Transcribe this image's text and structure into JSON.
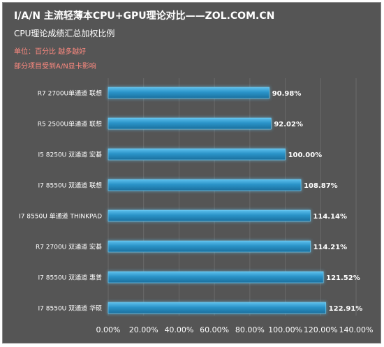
{
  "header": {
    "title": "I/A/N 主流轻薄本CPU+GPU理论对比——ZOL.COM.CN",
    "subtitle": "CPU理论成绩汇总加权比例",
    "note1": "单位：百分比  越多越好",
    "note2": "部分项目受到A/N显卡影响"
  },
  "colors": {
    "background": "#555555",
    "bar": "#2a93c9",
    "bar_light": "#5cc0ec",
    "bar_dark": "#1b6f9c",
    "grid": "#6a6a6a"
  },
  "chart_data": {
    "type": "bar",
    "orientation": "horizontal",
    "title": "I/A/N 主流轻薄本CPU+GPU理论对比——ZOL.COM.CN",
    "subtitle": "CPU理论成绩汇总加权比例",
    "categories": [
      "R7 2700U单通道 联想",
      "R5 2500U单通道 联想",
      "I5 8250U 双通道 宏碁",
      "I7 8550U 双通道 联想",
      "I7 8550U 单通道 THINKPAD",
      "R7 2700U 双通道 宏碁",
      "I7 8550U 双通道 惠普",
      "I7 8550U  双通道 华硕"
    ],
    "values": [
      90.98,
      92.02,
      100.0,
      108.87,
      114.14,
      114.21,
      121.52,
      122.91
    ],
    "value_labels": [
      "90.98%",
      "92.02%",
      "100.00%",
      "108.87%",
      "114.14%",
      "114.21%",
      "121.52%",
      "122.91%"
    ],
    "xlim": [
      0,
      140
    ],
    "xticks": [
      0,
      20,
      40,
      60,
      80,
      100,
      120,
      140
    ],
    "xtick_labels": [
      "0.00%",
      "20.00%",
      "40.00%",
      "60.00%",
      "80.00%",
      "100.00%",
      "120.00%",
      "140.00%"
    ],
    "grid": true,
    "legend": "none"
  }
}
